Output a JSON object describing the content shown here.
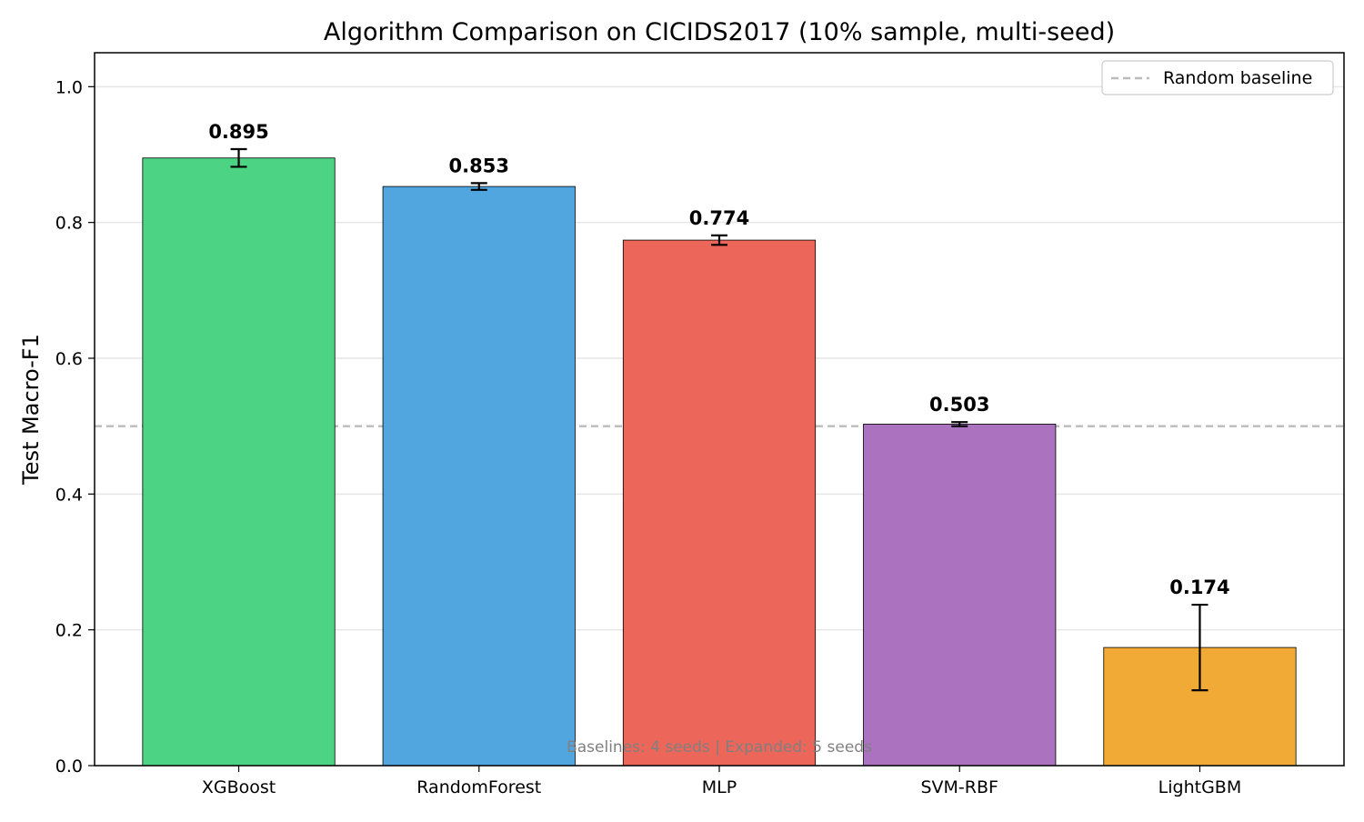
{
  "chart_data": {
    "type": "bar",
    "title": "Algorithm Comparison on CICIDS2017 (10% sample, multi-seed)",
    "xlabel": "",
    "ylabel": "Test Macro-F1",
    "ylim": [
      0,
      1.05
    ],
    "yticks": [
      0.0,
      0.2,
      0.4,
      0.6,
      0.8,
      1.0
    ],
    "ytick_labels": [
      "0.0",
      "0.2",
      "0.4",
      "0.6",
      "0.8",
      "1.0"
    ],
    "grid": true,
    "categories": [
      "XGBoost",
      "RandomForest",
      "MLP",
      "SVM-RBF",
      "LightGBM"
    ],
    "values": [
      0.895,
      0.853,
      0.774,
      0.503,
      0.174
    ],
    "value_labels": [
      "0.895",
      "0.853",
      "0.774",
      "0.503",
      "0.174"
    ],
    "errors": [
      0.013,
      0.005,
      0.007,
      0.003,
      0.063
    ],
    "colors": [
      "#4cd384",
      "#52a6e0",
      "#ec665a",
      "#ab72c0",
      "#f2aa37"
    ],
    "baseline": {
      "name": "Random baseline",
      "value": 0.5,
      "color": "#bbbbbb"
    },
    "legend": {
      "placement": "top-right",
      "entries": [
        "Random baseline"
      ]
    },
    "annotation": "Baselines: 4 seeds | Expanded: 5 seeds"
  }
}
